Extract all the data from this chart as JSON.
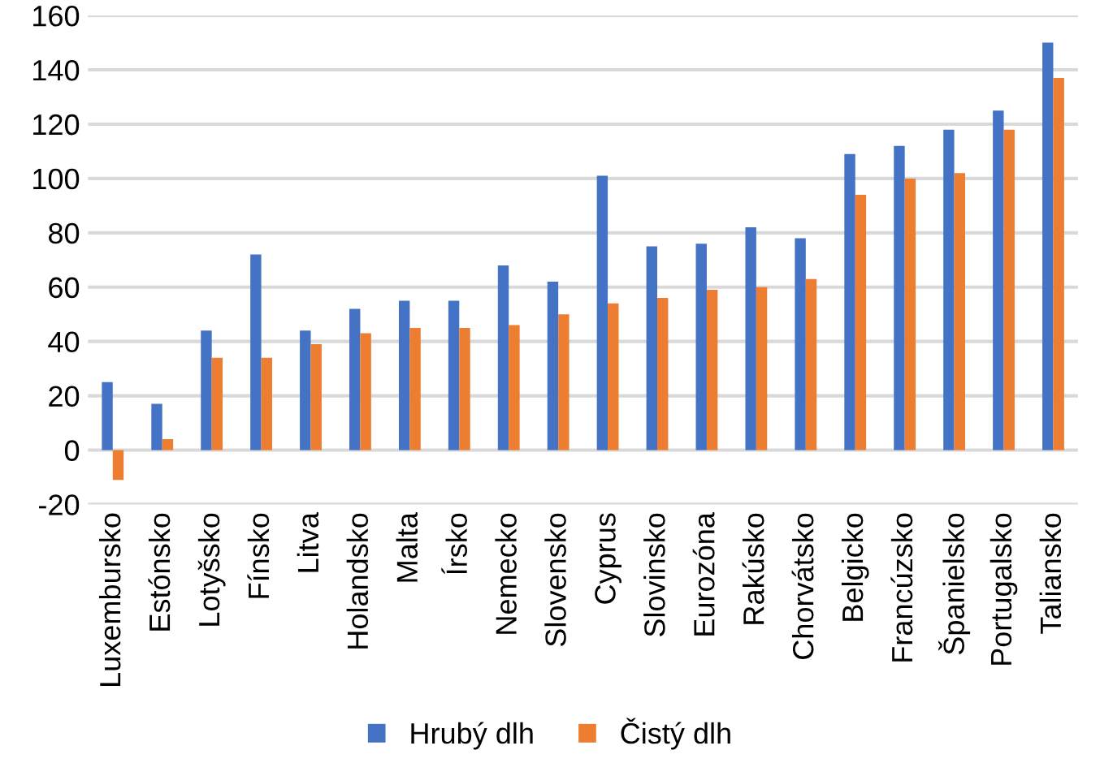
{
  "chart_data": {
    "type": "bar",
    "categories": [
      "Luxembursko",
      "Estónsko",
      "Lotyšsko",
      "Fínsko",
      "Litva",
      "Holandsko",
      "Malta",
      "Írsko",
      "Nemecko",
      "Slovensko",
      "Cyprus",
      "Slovinsko",
      "Eurozóna",
      "Rakúsko",
      "Chorvátsko",
      "Belgicko",
      "Francúzsko",
      "Španielsko",
      "Portugalsko",
      "Taliansko"
    ],
    "series": [
      {
        "name": "Hrubý dlh",
        "color": "#4472c4",
        "values": [
          25,
          17,
          44,
          72,
          44,
          52,
          55,
          55,
          68,
          62,
          101,
          75,
          76,
          82,
          78,
          109,
          112,
          118,
          125,
          150
        ]
      },
      {
        "name": "Čistý dlh",
        "color": "#ed7d31",
        "values": [
          -11,
          4,
          34,
          34,
          39,
          43,
          45,
          45,
          46,
          50,
          54,
          56,
          59,
          60,
          63,
          94,
          100,
          102,
          118,
          137
        ]
      }
    ],
    "ylim": [
      -20,
      160
    ],
    "yticks": [
      -20,
      0,
      20,
      40,
      60,
      80,
      100,
      120,
      140,
      160
    ],
    "grid": "y",
    "legend": "bottom"
  }
}
